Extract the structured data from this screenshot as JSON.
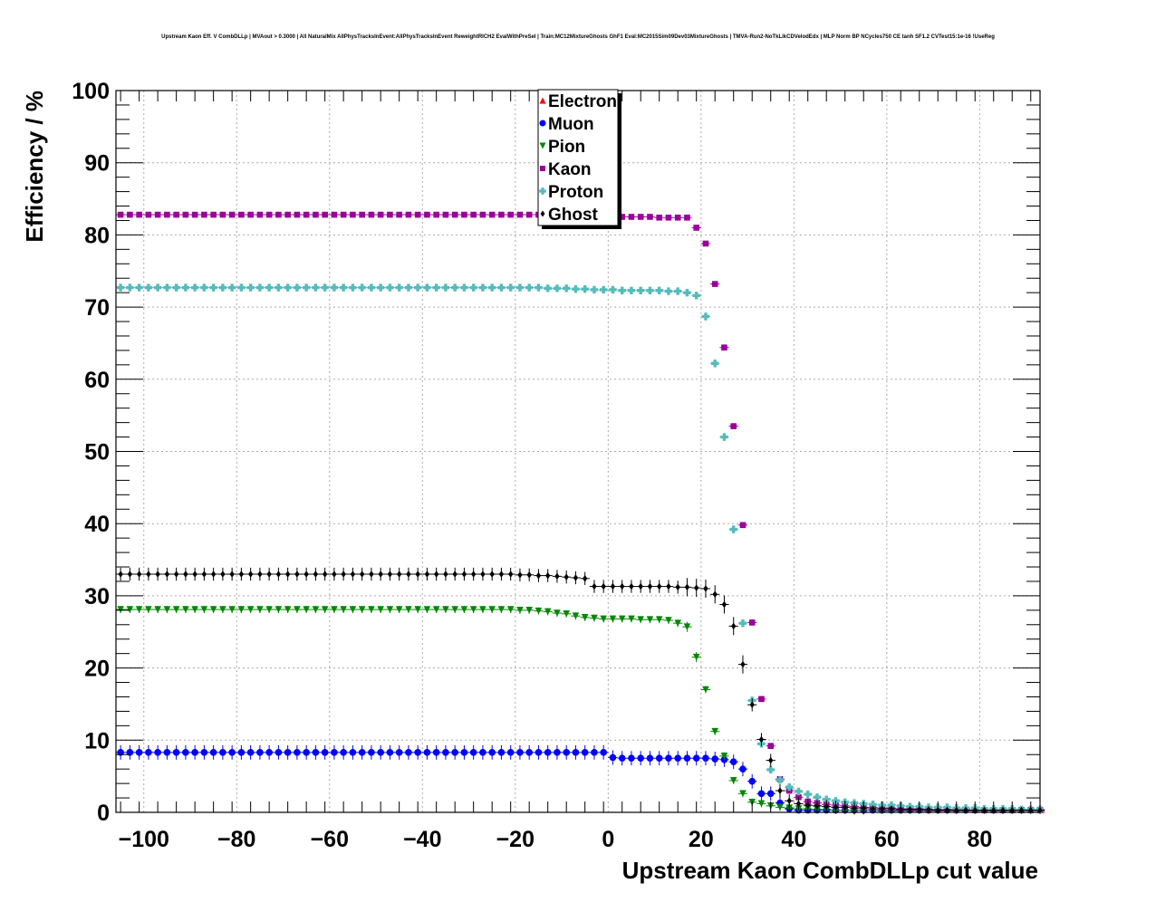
{
  "chart_data": {
    "type": "scatter",
    "title": "Upstream Kaon Eff. V CombDLLp | MVAout > 0.3000 | All NaturalMix AllPhysTracksInEvent:AllPhysTracksInEvent ReweightRICH2 EvalWithPreSel | Train:MC12MixtureGhosts GhF1 Eval:MC2015Sim09Dev03MixtureGhosts | TMVA-Run2-NoTkLikCDVelodEdx | MLP Norm BP NCycles750 CE tanh SF1.2 CVTest15:1e-16 !UseReg",
    "xlabel": "Upstream Kaon CombDLLp cut value",
    "ylabel": "Efficiency / %",
    "xlim": [
      -106,
      93
    ],
    "ylim": [
      0,
      100
    ],
    "x_ticks": [
      "−100",
      "−80",
      "−60",
      "−40",
      "−20",
      "0",
      "20",
      "40",
      "60",
      "80"
    ],
    "y_ticks": [
      "0",
      "10",
      "20",
      "30",
      "40",
      "50",
      "60",
      "70",
      "80",
      "90",
      "100"
    ],
    "grid": true,
    "legend_position": "top-center",
    "x_start": -105,
    "x_step": 2,
    "series": [
      {
        "name": "Electron",
        "color": "#ff0000",
        "marker": "triangle-up",
        "values": [
          0,
          0,
          0,
          0,
          0,
          0,
          0,
          0,
          0,
          0,
          0,
          0,
          0,
          0,
          0,
          0,
          0,
          0,
          0,
          0,
          0,
          0,
          0,
          0,
          0,
          0,
          0,
          0,
          0,
          0,
          0,
          0,
          0,
          0,
          0,
          0,
          0,
          0,
          0,
          0,
          0,
          0,
          0,
          0,
          0,
          0,
          0,
          0,
          0,
          0,
          0,
          0,
          0,
          0,
          0,
          0,
          0,
          0,
          0,
          0,
          0,
          0,
          0,
          0,
          0,
          0,
          0,
          0,
          0,
          0,
          0,
          0,
          0,
          0,
          0,
          0,
          0,
          0,
          0,
          0,
          0,
          0,
          0,
          0,
          0,
          0,
          0,
          0,
          0,
          0,
          0,
          0,
          0,
          0,
          0,
          0,
          0,
          0,
          0,
          0
        ],
        "error": 0
      },
      {
        "name": "Muon",
        "color": "#0000ff",
        "marker": "circle",
        "values": [
          8.3,
          8.3,
          8.3,
          8.3,
          8.3,
          8.3,
          8.3,
          8.3,
          8.3,
          8.3,
          8.3,
          8.3,
          8.3,
          8.3,
          8.3,
          8.3,
          8.3,
          8.3,
          8.3,
          8.3,
          8.3,
          8.3,
          8.3,
          8.3,
          8.3,
          8.3,
          8.3,
          8.3,
          8.3,
          8.3,
          8.3,
          8.3,
          8.3,
          8.3,
          8.3,
          8.3,
          8.3,
          8.3,
          8.3,
          8.3,
          8.3,
          8.3,
          8.3,
          8.3,
          8.3,
          8.3,
          8.3,
          8.3,
          8.3,
          8.3,
          8.3,
          8.3,
          8.3,
          7.6,
          7.5,
          7.5,
          7.5,
          7.5,
          7.5,
          7.5,
          7.5,
          7.5,
          7.5,
          7.5,
          7.4,
          7.3,
          7.0,
          6.0,
          4.3,
          2.6,
          2.6,
          1.3,
          0.5,
          0.3,
          0.3,
          0.3,
          0.3,
          0.3,
          0.3,
          0.3,
          0.3,
          0.3,
          0.3,
          0.3,
          0.3,
          0.3,
          0.3,
          0.3,
          0.3,
          0.3,
          0.3,
          0.3,
          0.3,
          0.3,
          0.3,
          0.3,
          0.3,
          0.3,
          0.3,
          0.3
        ],
        "error": 1.0
      },
      {
        "name": "Pion",
        "color": "#008800",
        "marker": "triangle-down",
        "values": [
          28.1,
          28.1,
          28.1,
          28.1,
          28.1,
          28.1,
          28.1,
          28.1,
          28.1,
          28.1,
          28.1,
          28.1,
          28.1,
          28.1,
          28.1,
          28.1,
          28.1,
          28.1,
          28.1,
          28.1,
          28.1,
          28.1,
          28.1,
          28.1,
          28.1,
          28.1,
          28.1,
          28.1,
          28.1,
          28.1,
          28.1,
          28.1,
          28.1,
          28.1,
          28.1,
          28.1,
          28.1,
          28.1,
          28.1,
          28.1,
          28.1,
          28.1,
          28.1,
          28.0,
          28.0,
          27.9,
          27.8,
          27.6,
          27.5,
          27.2,
          27.0,
          26.9,
          26.8,
          26.8,
          26.8,
          26.8,
          26.7,
          26.7,
          26.7,
          26.6,
          26.2,
          25.7,
          21.5,
          17.0,
          11.2,
          7.8,
          4.4,
          2.6,
          1.4,
          1.2,
          0.9,
          0.7,
          0.6,
          0.5,
          0.5,
          0.4,
          0.4,
          0.3,
          0.3,
          0.3,
          0.3,
          0.3,
          0.2,
          0.2,
          0.2,
          0.2,
          0.2,
          0.2,
          0.2,
          0.2,
          0.2,
          0.2,
          0.2,
          0.2,
          0.2,
          0.2,
          0.2,
          0.2,
          0.2,
          0.2
        ],
        "error": 0.5
      },
      {
        "name": "Kaon",
        "color": "#990099",
        "marker": "square",
        "values": [
          82.8,
          82.8,
          82.8,
          82.8,
          82.8,
          82.8,
          82.8,
          82.8,
          82.8,
          82.8,
          82.8,
          82.8,
          82.8,
          82.8,
          82.8,
          82.8,
          82.8,
          82.8,
          82.8,
          82.8,
          82.8,
          82.8,
          82.8,
          82.8,
          82.8,
          82.8,
          82.8,
          82.8,
          82.8,
          82.8,
          82.8,
          82.8,
          82.8,
          82.8,
          82.8,
          82.8,
          82.8,
          82.8,
          82.8,
          82.8,
          82.8,
          82.8,
          82.8,
          82.8,
          82.8,
          82.8,
          82.7,
          82.7,
          82.6,
          82.6,
          82.6,
          82.6,
          82.6,
          82.5,
          82.5,
          82.5,
          82.5,
          82.5,
          82.4,
          82.4,
          82.4,
          82.4,
          81.0,
          78.8,
          73.2,
          64.4,
          53.5,
          39.8,
          26.3,
          15.7,
          9.2,
          4.6,
          3.0,
          2.1,
          1.5,
          1.3,
          1.1,
          1.0,
          0.9,
          0.8,
          0.7,
          0.7,
          0.6,
          0.6,
          0.5,
          0.5,
          0.5,
          0.4,
          0.4,
          0.4,
          0.4,
          0.4,
          0.3,
          0.3,
          0.3,
          0.3,
          0.3,
          0.3,
          0.3,
          0.3
        ],
        "error": 0.3
      },
      {
        "name": "Proton",
        "color": "#55bbbb",
        "marker": "cross",
        "values": [
          72.7,
          72.7,
          72.7,
          72.7,
          72.7,
          72.7,
          72.7,
          72.7,
          72.7,
          72.7,
          72.7,
          72.7,
          72.7,
          72.7,
          72.7,
          72.7,
          72.7,
          72.7,
          72.7,
          72.7,
          72.7,
          72.7,
          72.7,
          72.7,
          72.7,
          72.7,
          72.7,
          72.7,
          72.7,
          72.7,
          72.7,
          72.7,
          72.7,
          72.7,
          72.7,
          72.7,
          72.7,
          72.7,
          72.7,
          72.7,
          72.7,
          72.7,
          72.7,
          72.7,
          72.7,
          72.7,
          72.6,
          72.6,
          72.6,
          72.5,
          72.5,
          72.4,
          72.4,
          72.4,
          72.3,
          72.3,
          72.3,
          72.3,
          72.3,
          72.2,
          72.2,
          72.0,
          71.6,
          68.7,
          62.2,
          52.0,
          39.2,
          26.2,
          15.5,
          9.5,
          5.9,
          4.5,
          3.5,
          2.9,
          2.5,
          2.1,
          1.8,
          1.6,
          1.4,
          1.3,
          1.2,
          1.1,
          1.0,
          1.0,
          0.9,
          0.8,
          0.8,
          0.7,
          0.7,
          0.7,
          0.6,
          0.6,
          0.6,
          0.5,
          0.5,
          0.5,
          0.5,
          0.4,
          0.4,
          0.4
        ],
        "error": 0.4
      },
      {
        "name": "Ghost",
        "color": "#000000",
        "marker": "diamond",
        "values": [
          33.0,
          33.0,
          33.0,
          33.0,
          33.0,
          33.0,
          33.0,
          33.0,
          33.0,
          33.0,
          33.0,
          33.0,
          33.0,
          33.0,
          33.0,
          33.0,
          33.0,
          33.0,
          33.0,
          33.0,
          33.0,
          33.0,
          33.0,
          33.0,
          33.0,
          33.0,
          33.0,
          33.0,
          33.0,
          33.0,
          33.0,
          33.0,
          33.0,
          33.0,
          33.0,
          33.0,
          33.0,
          33.0,
          33.0,
          33.0,
          33.0,
          33.0,
          33.0,
          32.9,
          32.9,
          32.8,
          32.8,
          32.7,
          32.6,
          32.5,
          32.4,
          31.3,
          31.3,
          31.3,
          31.3,
          31.3,
          31.3,
          31.3,
          31.3,
          31.3,
          31.2,
          31.2,
          31.1,
          31.0,
          30.2,
          28.8,
          25.8,
          20.5,
          14.9,
          10.1,
          7.2,
          3.0,
          1.6,
          1.2,
          1.0,
          0.9,
          0.8,
          0.7,
          0.7,
          0.6,
          0.6,
          0.5,
          0.5,
          0.5,
          0.4,
          0.4,
          0.4,
          0.4,
          0.3,
          0.3,
          0.3,
          0.3,
          0.3,
          0.3,
          0.3,
          0.3,
          0.3,
          0.3,
          0.3,
          0.3
        ],
        "error": 0.9
      }
    ]
  }
}
